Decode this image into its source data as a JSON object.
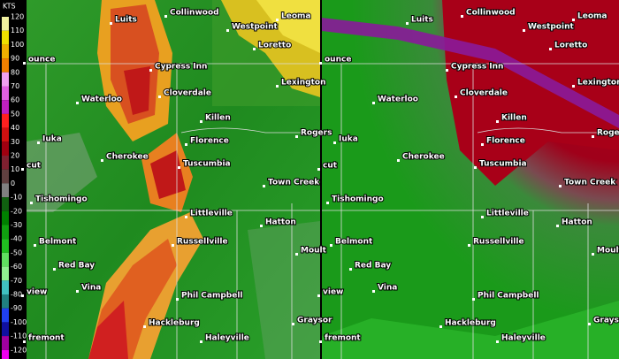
{
  "legend": {
    "unit": "KTS",
    "labels": [
      "120",
      "110",
      "100",
      "90",
      "80",
      "70",
      "60",
      "50",
      "40",
      "30",
      "20",
      "10",
      "0",
      "-10",
      "-20",
      "-30",
      "-40",
      "-50",
      "-60",
      "-70",
      "-80",
      "-90",
      "-100",
      "-110",
      "-120"
    ]
  },
  "panels": [
    {
      "towns": [
        "Luits",
        "Collinwood",
        "Leoma",
        "Westpoint",
        "Loretto",
        "ounce",
        "Cypress Inn",
        "Lexington",
        "Cloverdale",
        "Waterloo",
        "Killen",
        "Rogers",
        "Iuka",
        "Florence",
        "Cherokee",
        "Tuscumbia",
        "cut",
        "Town Creek",
        "Tishomingo",
        "Littleville",
        "Hatton",
        "Belmont",
        "Russellville",
        "Moult",
        "Red Bay",
        "Vina",
        "view",
        "Phil Campbell",
        "Graysor",
        "Hackleburg",
        "Haleyville",
        "fremont"
      ]
    },
    {
      "towns": [
        "Luits",
        "Collinwood",
        "Leoma",
        "Westpoint",
        "Loretto",
        "ounce",
        "Cypress Inn",
        "Lexington",
        "Cloverdale",
        "Waterloo",
        "Killen",
        "Rogers",
        "Iuka",
        "Florence",
        "Cherokee",
        "Tuscumbia",
        "cut",
        "Town Creek",
        "Tishomingo",
        "Littleville",
        "Hatton",
        "Belmont",
        "Russellville",
        "Moult",
        "Red Bay",
        "Vina",
        "view",
        "Phil Campbell",
        "Graysor",
        "Hackleburg",
        "Haleyville",
        "fremont"
      ]
    }
  ]
}
